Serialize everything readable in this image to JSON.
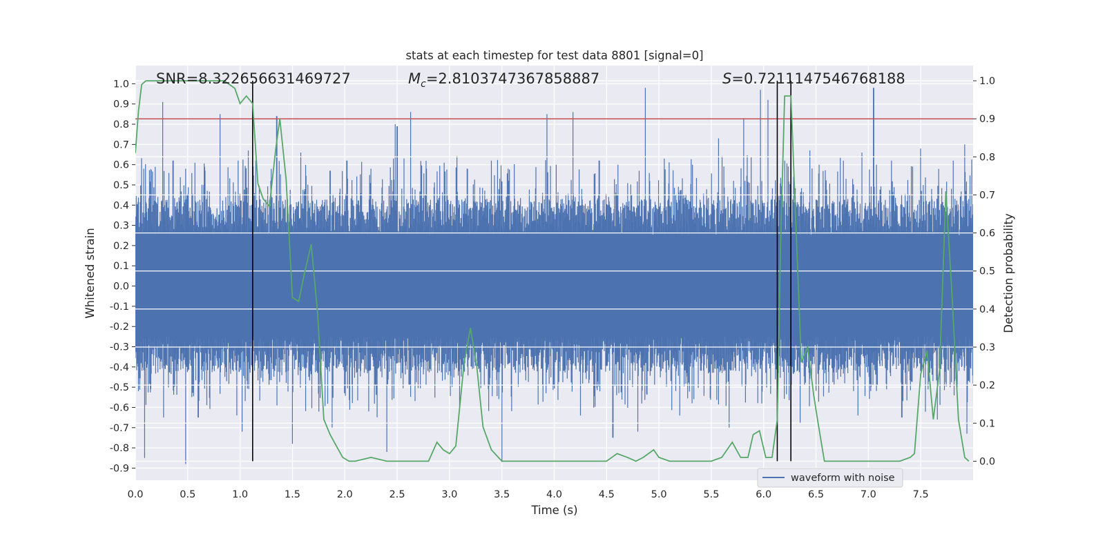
{
  "chart_data": {
    "type": "line",
    "title": "stats at each timestep for test data 8801 [signal=0]",
    "xlabel": "Time (s)",
    "ylabel": "Whitened strain",
    "y2label": "Detection probability",
    "xlim": [
      0.0,
      8.0
    ],
    "ylim": [
      -0.96,
      1.09
    ],
    "y2lim": [
      -0.05,
      1.04
    ],
    "xticks": [
      "0.0",
      "0.5",
      "1.0",
      "1.5",
      "2.0",
      "2.5",
      "3.0",
      "3.5",
      "4.0",
      "4.5",
      "5.0",
      "5.5",
      "6.0",
      "6.5",
      "7.0",
      "7.5"
    ],
    "yticks": [
      "1.0",
      "0.9",
      "0.8",
      "0.7",
      "0.6",
      "0.5",
      "0.4",
      "0.3",
      "0.2",
      "0.1",
      "0.0",
      "-0.1",
      "-0.2",
      "-0.3",
      "-0.4",
      "-0.5",
      "-0.6",
      "-0.7",
      "-0.8",
      "-0.9"
    ],
    "y2ticks": [
      "0.0",
      "0.1",
      "0.2",
      "0.3",
      "0.4",
      "0.5",
      "0.6",
      "0.7",
      "0.8",
      "0.9",
      "1.0"
    ],
    "grid": true,
    "legend_position": "bottom-right",
    "annotations": {
      "snr": "SNR=8.322656631469727",
      "mc_symbol": "M",
      "mc_sub": "c",
      "mc_value": "=2.8103747367858887",
      "s_symbol": "S",
      "s_value": "=0.7211147546768188"
    },
    "threshold": {
      "axis": "y2",
      "value": 0.9
    },
    "vlines": [
      1.12,
      6.13,
      6.26
    ],
    "series": [
      {
        "name": "waveform with noise",
        "axis": "y",
        "color": "#4c72b0",
        "envelope": {
          "band": 0.25,
          "spike_times": [
            0.08,
            0.26,
            0.36,
            0.48,
            0.57,
            0.66,
            0.81,
            0.98,
            1.08,
            1.15,
            1.35,
            1.58,
            1.86,
            2.02,
            2.25,
            2.48,
            2.5,
            2.63,
            2.78,
            2.95,
            3.17,
            3.4,
            3.56,
            3.93,
            4.02,
            4.18,
            4.43,
            4.61,
            4.87,
            5.05,
            5.32,
            5.57,
            5.81,
            5.88,
            5.97,
            6.04,
            6.2,
            6.44,
            6.53,
            6.76,
            6.94,
            7.05,
            7.22,
            7.5,
            7.81,
            7.92
          ],
          "spike_highs": [
            0.58,
            0.91,
            0.62,
            0.58,
            0.61,
            0.59,
            0.85,
            0.62,
            0.67,
            0.62,
            0.84,
            0.66,
            0.57,
            0.62,
            0.58,
            0.8,
            0.79,
            0.86,
            0.58,
            0.61,
            0.58,
            0.62,
            0.58,
            0.85,
            0.6,
            0.86,
            0.62,
            0.6,
            0.98,
            0.63,
            0.6,
            0.73,
            0.83,
            0.64,
            0.97,
            0.92,
            0.62,
            0.67,
            0.6,
            0.62,
            0.66,
            0.98,
            0.62,
            0.68,
            0.62,
            0.7
          ],
          "dip_times": [
            0.09,
            0.27,
            0.48,
            0.6,
            1.02,
            1.5,
            1.88,
            2.23,
            2.4,
            3.5,
            4.25,
            4.56,
            4.8,
            5.2,
            5.67,
            6.35,
            6.9,
            7.32,
            7.66,
            7.94
          ],
          "dip_lows": [
            -0.85,
            -0.65,
            -0.88,
            -0.65,
            -0.72,
            -0.78,
            -0.7,
            -0.62,
            -0.82,
            -0.87,
            -0.64,
            -0.75,
            -0.72,
            -0.64,
            -0.7,
            -0.68,
            -0.64,
            -0.65,
            -0.66,
            -0.73
          ]
        }
      },
      {
        "name": "",
        "axis": "y2",
        "color": "#55a868",
        "x": [
          0.0,
          0.03,
          0.06,
          0.1,
          0.2,
          0.4,
          0.6,
          0.85,
          0.95,
          1.0,
          1.06,
          1.12,
          1.17,
          1.22,
          1.28,
          1.34,
          1.38,
          1.44,
          1.5,
          1.56,
          1.62,
          1.68,
          1.74,
          1.8,
          1.86,
          1.92,
          1.98,
          2.04,
          2.1,
          2.25,
          2.4,
          2.6,
          2.8,
          2.88,
          2.94,
          3.0,
          3.06,
          3.14,
          3.2,
          3.26,
          3.32,
          3.4,
          3.5,
          3.7,
          3.9,
          4.1,
          4.3,
          4.4,
          4.5,
          4.6,
          4.7,
          4.78,
          4.85,
          4.95,
          5.0,
          5.1,
          5.3,
          5.5,
          5.6,
          5.7,
          5.78,
          5.85,
          5.9,
          5.96,
          6.02,
          6.08,
          6.13,
          6.16,
          6.2,
          6.24,
          6.26,
          6.3,
          6.36,
          6.42,
          6.48,
          6.52,
          6.58,
          6.62,
          6.7,
          7.0,
          7.3,
          7.4,
          7.44,
          7.5,
          7.56,
          7.62,
          7.68,
          7.74,
          7.8,
          7.86,
          7.92,
          7.96
        ],
        "y": [
          0.81,
          0.92,
          0.99,
          1.0,
          1.0,
          1.0,
          1.0,
          1.0,
          0.98,
          0.94,
          0.96,
          0.94,
          0.73,
          0.69,
          0.67,
          0.82,
          0.9,
          0.74,
          0.43,
          0.42,
          0.5,
          0.57,
          0.39,
          0.11,
          0.07,
          0.04,
          0.01,
          0.0,
          0.0,
          0.01,
          0.0,
          0.0,
          0.0,
          0.05,
          0.03,
          0.02,
          0.04,
          0.26,
          0.35,
          0.25,
          0.09,
          0.03,
          0.0,
          0.0,
          0.0,
          0.0,
          0.0,
          0.0,
          0.0,
          0.02,
          0.01,
          0.0,
          0.01,
          0.03,
          0.01,
          0.0,
          0.0,
          0.0,
          0.01,
          0.05,
          0.01,
          0.01,
          0.07,
          0.08,
          0.01,
          0.01,
          0.11,
          0.55,
          0.96,
          0.96,
          0.96,
          0.68,
          0.26,
          0.3,
          0.17,
          0.1,
          0.0,
          0.0,
          0.0,
          0.0,
          0.0,
          0.01,
          0.02,
          0.23,
          0.29,
          0.11,
          0.24,
          0.71,
          0.43,
          0.11,
          0.01,
          0.0
        ]
      }
    ]
  }
}
